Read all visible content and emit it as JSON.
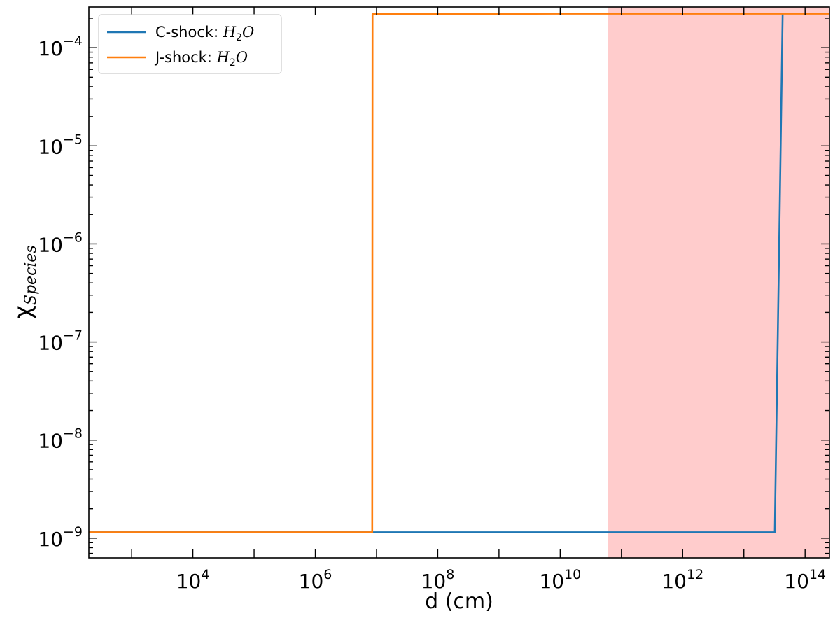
{
  "chart_data": {
    "type": "line",
    "x_scale": "log",
    "y_scale": "log",
    "xlim": [
      200,
      250000000000000.0
    ],
    "ylim": [
      6.3e-10,
      0.00026
    ],
    "xlabel": "d (cm)",
    "ylabel": "χ_Species",
    "ylabel_parts": {
      "main": "χ",
      "sub": "Species"
    },
    "x_ticks": [
      {
        "value": 10000,
        "base": "10",
        "exp": "4"
      },
      {
        "value": 1000000,
        "base": "10",
        "exp": "6"
      },
      {
        "value": 100000000,
        "base": "10",
        "exp": "8"
      },
      {
        "value": 10000000000,
        "base": "10",
        "exp": "10"
      },
      {
        "value": 1000000000000,
        "base": "10",
        "exp": "12"
      },
      {
        "value": 100000000000000,
        "base": "10",
        "exp": "14"
      }
    ],
    "y_ticks": [
      {
        "value": 1e-09,
        "base": "10",
        "exp": "−9"
      },
      {
        "value": 1e-08,
        "base": "10",
        "exp": "−8"
      },
      {
        "value": 1e-07,
        "base": "10",
        "exp": "−7"
      },
      {
        "value": 1e-06,
        "base": "10",
        "exp": "−6"
      },
      {
        "value": 1e-05,
        "base": "10",
        "exp": "−5"
      },
      {
        "value": 0.0001,
        "base": "10",
        "exp": "−4"
      }
    ],
    "shaded_region": {
      "x_start": 60000000000.0,
      "x_end": 250000000000000.0,
      "color": "#ffcccc"
    },
    "legend_position": "upper-left",
    "series": [
      {
        "name": "C-shock: H2O",
        "name_parts": {
          "prefix": "C-shock: ",
          "species": "H",
          "sub": "2",
          "suffix": "O"
        },
        "color": "#1f77b4",
        "x": [
          200,
          8500000.0,
          1000000000.0,
          100000000000.0,
          32000000000000.0,
          43000000000000.0
        ],
        "y": [
          1.15e-09,
          1.15e-09,
          1.15e-09,
          1.15e-09,
          1.15e-09,
          0.00022
        ]
      },
      {
        "name": "J-shock: H2O",
        "name_parts": {
          "prefix": "J-shock: ",
          "species": "H",
          "sub": "2",
          "suffix": "O"
        },
        "color": "#ff7f0e",
        "x": [
          200,
          8500000.0,
          8600000.0,
          100000000.0,
          10000000000.0,
          1000000000000.0,
          250000000000000.0
        ],
        "y": [
          1.15e-09,
          1.15e-09,
          0.00022,
          0.00022,
          0.000222,
          0.000222,
          0.000222
        ]
      }
    ],
    "grid": false
  }
}
